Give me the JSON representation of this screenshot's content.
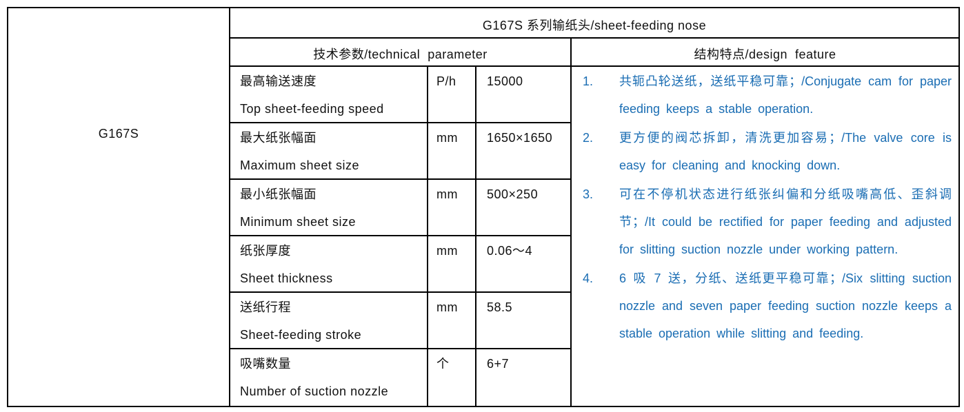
{
  "model": "G167S",
  "title": "G167S 系列输纸头/sheet-feeding nose",
  "headers": {
    "parameters": "技术参数/technical  parameter",
    "features": "结构特点/design  feature"
  },
  "parameters": [
    {
      "name_cn": "最高输送速度",
      "name_en": "Top sheet-feeding speed",
      "unit": "P/h",
      "value": "15000"
    },
    {
      "name_cn": "最大纸张幅面",
      "name_en": "Maximum sheet size",
      "unit": "mm",
      "value": "1650×1650"
    },
    {
      "name_cn": "最小纸张幅面",
      "name_en": "Minimum sheet size",
      "unit": "mm",
      "value": "500×250"
    },
    {
      "name_cn": "纸张厚度",
      "name_en": "Sheet thickness",
      "unit": "mm",
      "value": "0.06～4"
    },
    {
      "name_cn": "送纸行程",
      "name_en": "Sheet-feeding stroke",
      "unit": "mm",
      "value": "58.5"
    },
    {
      "name_cn": "吸嘴数量",
      "name_en": "Number of suction nozzle",
      "unit": "个",
      "value": "6+7"
    }
  ],
  "features": [
    {
      "num": "1.",
      "text": "共轭凸轮送纸，送纸平稳可靠；/Conjugate cam for paper feeding keeps a stable operation."
    },
    {
      "num": "2.",
      "text": "更方便的阀芯拆卸，清洗更加容易；/The valve core is easy for cleaning and knocking down."
    },
    {
      "num": "3.",
      "text": "可在不停机状态进行纸张纠偏和分纸吸嘴高低、歪斜调节；/It could be rectified for paper feeding and adjusted for slitting suction nozzle under working pattern."
    },
    {
      "num": "4.",
      "text": "6 吸 7 送，分纸、送纸更平稳可靠；/Six slitting suction nozzle and seven paper feeding suction nozzle keeps a stable operation while slitting and feeding."
    }
  ],
  "colors": {
    "feature_text": "#1a6db3",
    "border": "#000000"
  }
}
